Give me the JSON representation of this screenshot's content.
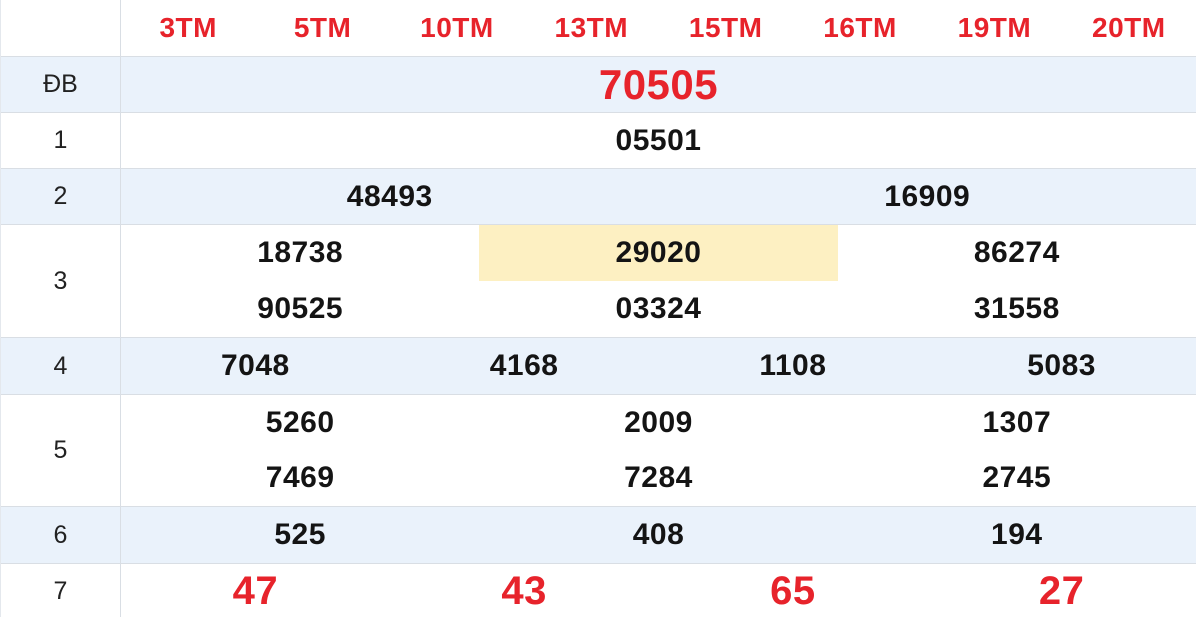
{
  "colors": {
    "red": "#e7232b",
    "altbg": "#eaf2fb",
    "hl": "#fdf0c2",
    "border": "#d9dee4",
    "ink": "#141414"
  },
  "table": {
    "header": {
      "labels": [
        "3TM",
        "5TM",
        "10TM",
        "13TM",
        "15TM",
        "16TM",
        "19TM",
        "20TM"
      ]
    },
    "rows": [
      {
        "label": "ĐB",
        "values": [
          [
            "70505"
          ]
        ]
      },
      {
        "label": "1",
        "values": [
          [
            "05501"
          ]
        ]
      },
      {
        "label": "2",
        "values": [
          [
            "48493"
          ],
          [
            "16909"
          ]
        ]
      },
      {
        "label": "3",
        "values": [
          [
            "18738",
            "90525"
          ],
          [
            "29020",
            "03324"
          ],
          [
            "86274",
            "31558"
          ]
        ],
        "highlighted_value": "29020"
      },
      {
        "label": "4",
        "values": [
          [
            "7048"
          ],
          [
            "4168"
          ],
          [
            "1108"
          ],
          [
            "5083"
          ]
        ]
      },
      {
        "label": "5",
        "values": [
          [
            "5260",
            "7469"
          ],
          [
            "2009",
            "7284"
          ],
          [
            "1307",
            "2745"
          ]
        ]
      },
      {
        "label": "6",
        "values": [
          [
            "525"
          ],
          [
            "408"
          ],
          [
            "194"
          ]
        ]
      },
      {
        "label": "7",
        "values": [
          [
            "47"
          ],
          [
            "43"
          ],
          [
            "65"
          ],
          [
            "27"
          ]
        ]
      }
    ]
  }
}
